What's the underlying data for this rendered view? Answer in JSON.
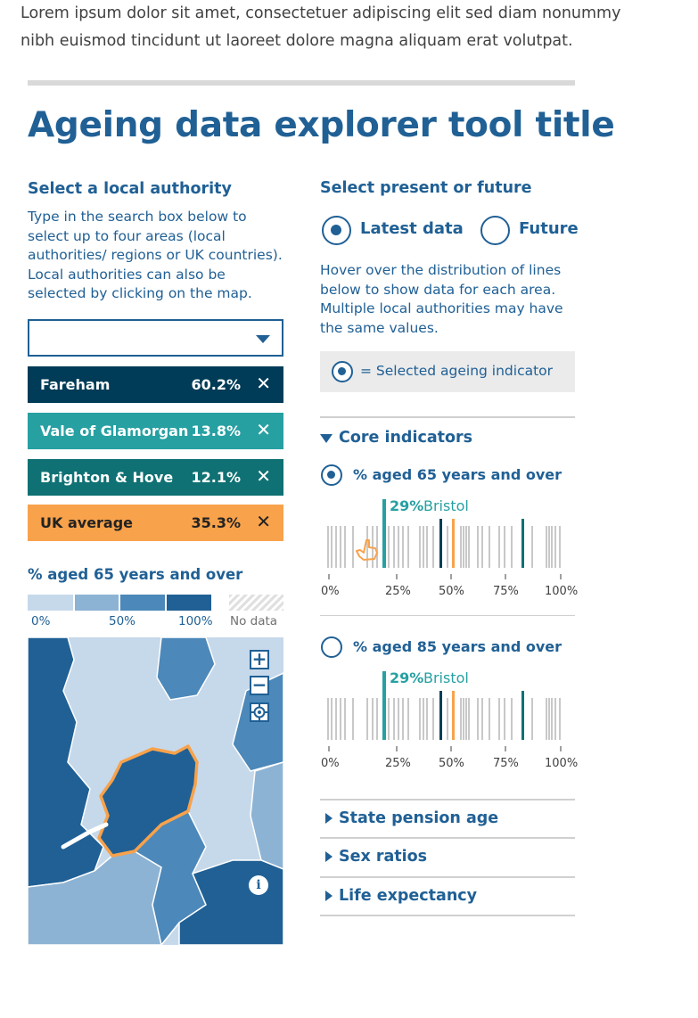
{
  "intro_text": "Lorem ipsum dolor sit amet, consectetuer adipiscing elit sed diam nonummy nibh euismod tincidunt ut laoreet dolore magna aliquam erat volutpat.",
  "tool_title": "Ageing data explorer tool title",
  "left": {
    "heading": "Select a local authority",
    "instructions": "Type in the search box below to select up to four areas (local authorities/ regions or UK countries). Local authorities can also be selected by clicking on the map.",
    "search": {
      "value": ""
    },
    "selected_areas": [
      {
        "name": "Fareham",
        "value": "60.2%",
        "color": "#003c57"
      },
      {
        "name": "Vale of Glamorgan",
        "value": "13.8%",
        "color": "#27a0a2"
      },
      {
        "name": "Brighton & Hove",
        "value": "12.1%",
        "color": "#0f7173"
      },
      {
        "name": "UK average",
        "value": "35.3%",
        "color": "#f8a24b"
      }
    ],
    "remove_symbol": "✕",
    "legend": {
      "title": "% aged 65 years and over",
      "labels": [
        "0%",
        "50%",
        "100%"
      ],
      "no_data": "No data",
      "colors": [
        "#c6d9eb",
        "#8db3d4",
        "#4c88b9",
        "#206095"
      ]
    },
    "map_controls": {
      "zoom_in": "+",
      "zoom_out": "−",
      "info": "i"
    }
  },
  "right": {
    "heading": "Select present or future",
    "options": [
      {
        "label": "Latest data",
        "selected": true
      },
      {
        "label": "Future",
        "selected": false
      }
    ],
    "instructions": "Hover over the distribution of lines below to show data for each area. Multiple local authorities may have the same values.",
    "key_text": "= Selected ageing indicator",
    "core_section": "Core indicators",
    "indicators": [
      {
        "label": "% aged 65 years and over",
        "selected": true,
        "hover_value": "29%",
        "hover_area": "Bristol",
        "axis_ticks": [
          "0%",
          "25%",
          "50%",
          "75%",
          "100%"
        ]
      },
      {
        "label": "% aged 85 years and over",
        "selected": false,
        "hover_value": "29%",
        "hover_area": "Bristol",
        "axis_ticks": [
          "0%",
          "25%",
          "50%",
          "75%",
          "100%"
        ]
      }
    ],
    "collapsed_sections": [
      "State pension age",
      "Sex ratios",
      "Life expectancy"
    ]
  }
}
